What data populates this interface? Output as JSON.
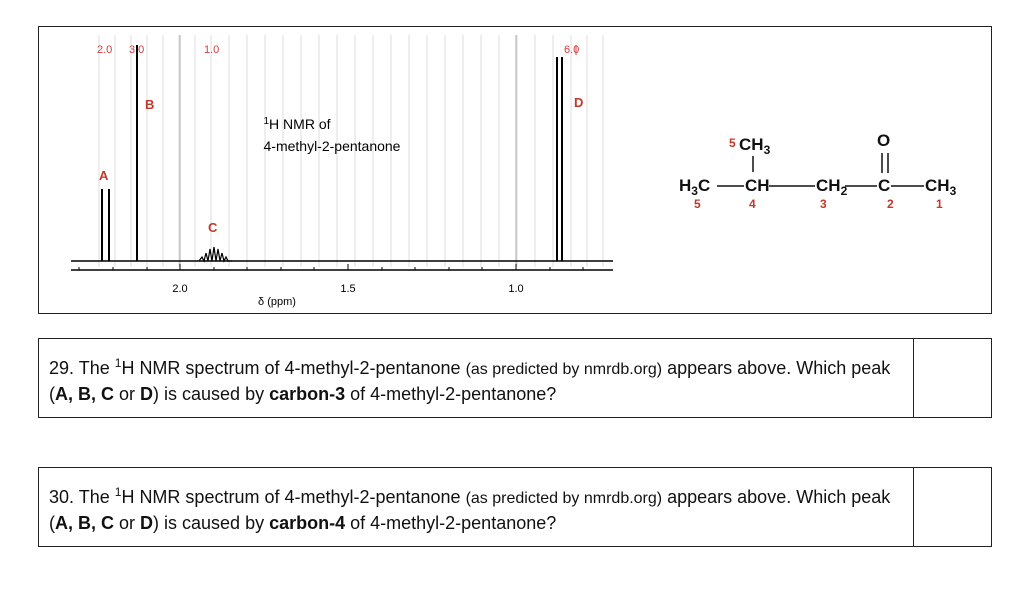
{
  "spectrum": {
    "title_line1": "1H NMR of",
    "title_line2": "4-methyl-2-pentanone",
    "integrals": [
      "2.0",
      "3.0",
      "1.0",
      "6.0"
    ],
    "peak_labels": [
      "A",
      "B",
      "C",
      "D"
    ],
    "x_ticks": [
      "2.0",
      "1.5",
      "1.0"
    ],
    "x_axis_label": "δ (ppm)"
  },
  "structure": {
    "groups": [
      "H3C",
      "CH",
      "CH2",
      "C",
      "CH3",
      "CH3",
      "O"
    ],
    "numbers": [
      "5",
      "4",
      "3",
      "2",
      "1",
      "5"
    ]
  },
  "questions": [
    {
      "number": "29.",
      "pre": "The ",
      "sup": "1",
      "mid": "H NMR spectrum of 4-methyl-2-pentanone ",
      "source": "(as predicted by nmrdb.org)",
      "line2a": " appears above. Which peak (",
      "choices": "A, B, C",
      "or": " or ",
      "last": "D",
      "after": ") is caused by ",
      "target": "carbon-3",
      "end": " of 4-methyl-2-pentanone?"
    },
    {
      "number": "30.",
      "pre": "The ",
      "sup": "1",
      "mid": "H NMR spectrum of 4-methyl-2-pentanone ",
      "source": "(as predicted by nmrdb.org)",
      "line2a": " appears above. Which peak (",
      "choices": "A, B, C",
      "or": " or ",
      "last": "D",
      "after": ") is caused by ",
      "target": "carbon-4",
      "end": " of 4-methyl-2-pentanone?"
    }
  ]
}
